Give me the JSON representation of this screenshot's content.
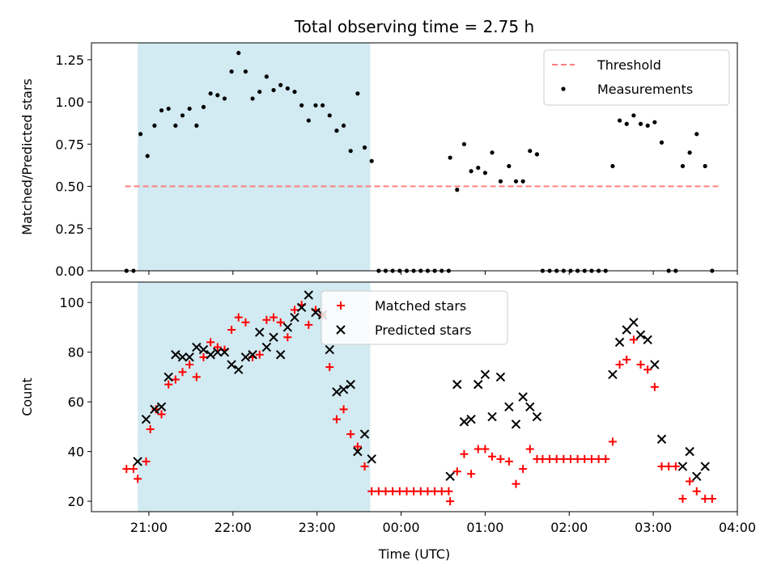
{
  "title": "Total observing time = 2.75 h",
  "colors": {
    "threshold": "#ff7f7f",
    "measurements": "#000000",
    "matched": "#ff0000",
    "predicted": "#000000",
    "shade": "#add8e6"
  },
  "chart_data": [
    {
      "type": "scatter",
      "panel": "top",
      "ylabel": "Matched/Predicted stars",
      "xlabel": "",
      "x_range": [
        "20:19",
        "04:00"
      ],
      "ylim": [
        0,
        1.35
      ],
      "yticks": [
        0.0,
        0.25,
        0.5,
        0.75,
        1.0,
        1.25
      ],
      "ytick_labels": [
        "0.00",
        "0.25",
        "0.50",
        "0.75",
        "1.00",
        "1.25"
      ],
      "shaded_span": [
        "20:52",
        "23:38"
      ],
      "legend": {
        "position": "top-right",
        "entries": [
          "Threshold",
          "Measurements"
        ]
      },
      "threshold": {
        "name": "Threshold",
        "y": 0.5,
        "x": [
          "20:43",
          "03:48"
        ]
      },
      "series": [
        {
          "name": "Measurements",
          "style": "dot",
          "points": [
            [
              "20:44",
              0.0
            ],
            [
              "20:49",
              0.0
            ],
            [
              "20:54",
              0.81
            ],
            [
              "20:59",
              0.68
            ],
            [
              "21:04",
              0.86
            ],
            [
              "21:09",
              0.95
            ],
            [
              "21:14",
              0.96
            ],
            [
              "21:19",
              0.86
            ],
            [
              "21:24",
              0.92
            ],
            [
              "21:29",
              0.96
            ],
            [
              "21:34",
              0.86
            ],
            [
              "21:39",
              0.97
            ],
            [
              "21:44",
              1.05
            ],
            [
              "21:49",
              1.04
            ],
            [
              "21:54",
              1.02
            ],
            [
              "21:59",
              1.18
            ],
            [
              "22:04",
              1.29
            ],
            [
              "22:09",
              1.18
            ],
            [
              "22:14",
              1.02
            ],
            [
              "22:19",
              1.06
            ],
            [
              "22:24",
              1.15
            ],
            [
              "22:29",
              1.07
            ],
            [
              "22:34",
              1.1
            ],
            [
              "22:39",
              1.08
            ],
            [
              "22:44",
              1.06
            ],
            [
              "22:49",
              0.98
            ],
            [
              "22:54",
              0.89
            ],
            [
              "22:59",
              0.98
            ],
            [
              "23:04",
              0.98
            ],
            [
              "23:09",
              0.92
            ],
            [
              "23:14",
              0.83
            ],
            [
              "23:19",
              0.86
            ],
            [
              "23:24",
              0.71
            ],
            [
              "23:29",
              1.05
            ],
            [
              "23:34",
              0.73
            ],
            [
              "23:39",
              0.65
            ],
            [
              "23:44",
              0.0
            ],
            [
              "23:49",
              0.0
            ],
            [
              "23:54",
              0.0
            ],
            [
              "23:59",
              0.0
            ],
            [
              "00:04",
              0.0
            ],
            [
              "00:09",
              0.0
            ],
            [
              "00:14",
              0.0
            ],
            [
              "00:19",
              0.0
            ],
            [
              "00:24",
              0.0
            ],
            [
              "00:29",
              0.0
            ],
            [
              "00:34",
              0.0
            ],
            [
              "00:35",
              0.67
            ],
            [
              "00:40",
              0.48
            ],
            [
              "00:45",
              0.75
            ],
            [
              "00:50",
              0.59
            ],
            [
              "00:55",
              0.61
            ],
            [
              "01:00",
              0.58
            ],
            [
              "01:05",
              0.7
            ],
            [
              "01:11",
              0.53
            ],
            [
              "01:17",
              0.62
            ],
            [
              "01:22",
              0.53
            ],
            [
              "01:27",
              0.53
            ],
            [
              "01:32",
              0.71
            ],
            [
              "01:37",
              0.69
            ],
            [
              "01:41",
              0.0
            ],
            [
              "01:46",
              0.0
            ],
            [
              "01:51",
              0.0
            ],
            [
              "01:56",
              0.0
            ],
            [
              "02:01",
              0.0
            ],
            [
              "02:06",
              0.0
            ],
            [
              "02:11",
              0.0
            ],
            [
              "02:16",
              0.0
            ],
            [
              "02:21",
              0.0
            ],
            [
              "02:26",
              0.0
            ],
            [
              "02:31",
              0.62
            ],
            [
              "02:36",
              0.89
            ],
            [
              "02:41",
              0.87
            ],
            [
              "02:46",
              0.92
            ],
            [
              "02:51",
              0.87
            ],
            [
              "02:56",
              0.86
            ],
            [
              "03:01",
              0.88
            ],
            [
              "03:06",
              0.76
            ],
            [
              "03:11",
              0.0
            ],
            [
              "03:16",
              0.0
            ],
            [
              "03:21",
              0.62
            ],
            [
              "03:26",
              0.7
            ],
            [
              "03:31",
              0.81
            ],
            [
              "03:37",
              0.62
            ],
            [
              "03:42",
              0.0
            ]
          ]
        }
      ]
    },
    {
      "type": "scatter",
      "panel": "bottom",
      "ylabel": "Count",
      "xlabel": "Time (UTC)",
      "x_range": [
        "20:19",
        "04:00"
      ],
      "ylim": [
        15.8,
        108.2
      ],
      "yticks": [
        20,
        40,
        60,
        80,
        100
      ],
      "xticks": [
        "21:00",
        "22:00",
        "23:00",
        "00:00",
        "01:00",
        "02:00",
        "03:00",
        "04:00"
      ],
      "shaded_span": [
        "20:52",
        "23:38"
      ],
      "legend": {
        "position": "top-center",
        "entries": [
          "Matched stars",
          "Predicted stars"
        ]
      },
      "series": [
        {
          "name": "Matched stars",
          "marker": "+",
          "points": [
            [
              "20:44",
              33
            ],
            [
              "20:49",
              33
            ],
            [
              "20:52",
              29
            ],
            [
              "20:58",
              36
            ],
            [
              "21:01",
              49
            ],
            [
              "21:05",
              57
            ],
            [
              "21:09",
              55
            ],
            [
              "21:14",
              67
            ],
            [
              "21:19",
              69
            ],
            [
              "21:24",
              72
            ],
            [
              "21:29",
              75
            ],
            [
              "21:34",
              70
            ],
            [
              "21:39",
              78
            ],
            [
              "21:44",
              84
            ],
            [
              "21:49",
              82
            ],
            [
              "21:54",
              81
            ],
            [
              "21:59",
              89
            ],
            [
              "22:04",
              94
            ],
            [
              "22:09",
              92
            ],
            [
              "22:14",
              78
            ],
            [
              "22:19",
              79
            ],
            [
              "22:24",
              93
            ],
            [
              "22:29",
              94
            ],
            [
              "22:34",
              92
            ],
            [
              "22:39",
              86
            ],
            [
              "22:44",
              97
            ],
            [
              "22:49",
              99
            ],
            [
              "22:54",
              91
            ],
            [
              "22:59",
              97
            ],
            [
              "23:04",
              95
            ],
            [
              "23:09",
              74
            ],
            [
              "23:14",
              53
            ],
            [
              "23:19",
              57
            ],
            [
              "23:24",
              47
            ],
            [
              "23:29",
              42
            ],
            [
              "23:34",
              34
            ],
            [
              "23:39",
              24
            ],
            [
              "23:44",
              24
            ],
            [
              "23:49",
              24
            ],
            [
              "23:54",
              24
            ],
            [
              "23:59",
              24
            ],
            [
              "00:04",
              24
            ],
            [
              "00:09",
              24
            ],
            [
              "00:14",
              24
            ],
            [
              "00:19",
              24
            ],
            [
              "00:24",
              24
            ],
            [
              "00:29",
              24
            ],
            [
              "00:34",
              24
            ],
            [
              "00:35",
              20
            ],
            [
              "00:40",
              32
            ],
            [
              "00:45",
              39
            ],
            [
              "00:50",
              31
            ],
            [
              "00:55",
              41
            ],
            [
              "01:00",
              41
            ],
            [
              "01:05",
              38
            ],
            [
              "01:11",
              37
            ],
            [
              "01:17",
              36
            ],
            [
              "01:22",
              27
            ],
            [
              "01:27",
              33
            ],
            [
              "01:32",
              41
            ],
            [
              "01:37",
              37
            ],
            [
              "01:41",
              37
            ],
            [
              "01:46",
              37
            ],
            [
              "01:51",
              37
            ],
            [
              "01:56",
              37
            ],
            [
              "02:01",
              37
            ],
            [
              "02:06",
              37
            ],
            [
              "02:11",
              37
            ],
            [
              "02:16",
              37
            ],
            [
              "02:21",
              37
            ],
            [
              "02:26",
              37
            ],
            [
              "02:31",
              44
            ],
            [
              "02:36",
              75
            ],
            [
              "02:41",
              77
            ],
            [
              "02:46",
              85
            ],
            [
              "02:51",
              75
            ],
            [
              "02:56",
              73
            ],
            [
              "03:01",
              66
            ],
            [
              "03:06",
              34
            ],
            [
              "03:11",
              34
            ],
            [
              "03:16",
              34
            ],
            [
              "03:21",
              21
            ],
            [
              "03:26",
              28
            ],
            [
              "03:31",
              24
            ],
            [
              "03:37",
              21
            ],
            [
              "03:42",
              21
            ]
          ]
        },
        {
          "name": "Predicted stars",
          "marker": "x",
          "points": [
            [
              "20:52",
              36
            ],
            [
              "20:58",
              53
            ],
            [
              "21:04",
              57
            ],
            [
              "21:09",
              58
            ],
            [
              "21:14",
              70
            ],
            [
              "21:19",
              79
            ],
            [
              "21:24",
              78
            ],
            [
              "21:29",
              78
            ],
            [
              "21:34",
              82
            ],
            [
              "21:39",
              81
            ],
            [
              "21:44",
              79
            ],
            [
              "21:49",
              80
            ],
            [
              "21:54",
              80
            ],
            [
              "21:59",
              75
            ],
            [
              "22:04",
              73
            ],
            [
              "22:09",
              78
            ],
            [
              "22:14",
              79
            ],
            [
              "22:19",
              88
            ],
            [
              "22:24",
              82
            ],
            [
              "22:29",
              86
            ],
            [
              "22:34",
              79
            ],
            [
              "22:39",
              90
            ],
            [
              "22:44",
              94
            ],
            [
              "22:49",
              98
            ],
            [
              "22:54",
              103
            ],
            [
              "22:59",
              96
            ],
            [
              "23:04",
              95
            ],
            [
              "23:09",
              81
            ],
            [
              "23:14",
              64
            ],
            [
              "23:19",
              65
            ],
            [
              "23:24",
              67
            ],
            [
              "23:29",
              40
            ],
            [
              "23:34",
              47
            ],
            [
              "23:39",
              37
            ],
            [
              "00:35",
              30
            ],
            [
              "00:40",
              67
            ],
            [
              "00:45",
              52
            ],
            [
              "00:50",
              53
            ],
            [
              "00:55",
              67
            ],
            [
              "01:00",
              71
            ],
            [
              "01:05",
              54
            ],
            [
              "01:11",
              70
            ],
            [
              "01:17",
              58
            ],
            [
              "01:22",
              51
            ],
            [
              "01:27",
              62
            ],
            [
              "01:32",
              58
            ],
            [
              "01:37",
              54
            ],
            [
              "02:31",
              71
            ],
            [
              "02:36",
              84
            ],
            [
              "02:41",
              89
            ],
            [
              "02:46",
              92
            ],
            [
              "02:51",
              87
            ],
            [
              "02:56",
              85
            ],
            [
              "03:01",
              75
            ],
            [
              "03:06",
              45
            ],
            [
              "03:21",
              34
            ],
            [
              "03:26",
              40
            ],
            [
              "03:31",
              30
            ],
            [
              "03:37",
              34
            ]
          ]
        }
      ]
    }
  ]
}
